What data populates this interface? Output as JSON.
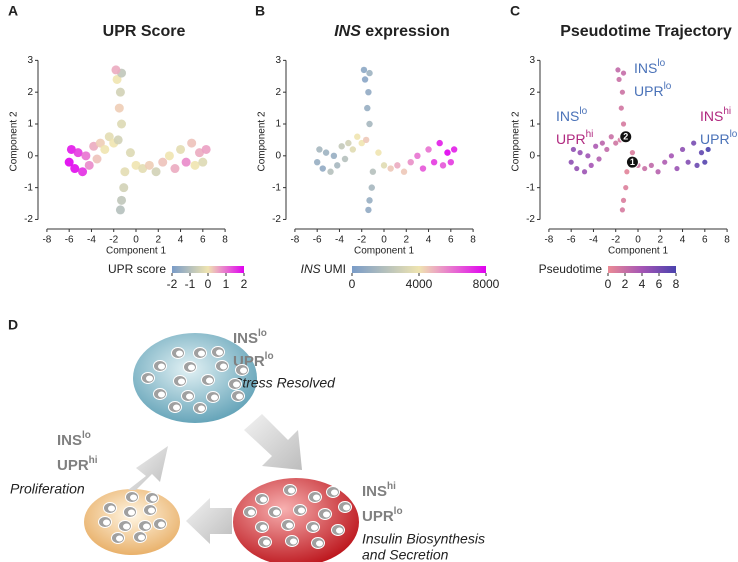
{
  "chart_data": [
    {
      "type": "scatter",
      "panel": "A",
      "title": [
        {
          "text": "UPR Score"
        }
      ],
      "xlabel": "Component 1",
      "ylabel": "Component 2",
      "xlim": [
        -8.8,
        8.8
      ],
      "ylim": [
        -2.3,
        3.2
      ],
      "xticks": [
        -8,
        -6,
        -4,
        -2,
        0,
        2,
        4,
        6,
        8
      ],
      "yticks": [
        -2,
        -1,
        0,
        1,
        2,
        3
      ],
      "x": [
        -6,
        -5.8,
        -5.5,
        -5.2,
        -4.8,
        -4.5,
        -4.2,
        -3.8,
        -3.5,
        -3.2,
        -2.8,
        -2.4,
        -2,
        -1.6,
        -1.3,
        -1.5,
        -1.4,
        -1.7,
        -1.3,
        -1.8,
        -1,
        -1.1,
        -1.3,
        -1.4,
        -0.5,
        0,
        0.6,
        1.2,
        1.8,
        2.4,
        3,
        3.5,
        4,
        4.5,
        5,
        5.3,
        5.7,
        6,
        6.3
      ],
      "y": [
        -0.2,
        0.2,
        -0.4,
        0.1,
        -0.5,
        0,
        -0.3,
        0.3,
        -0.1,
        0.4,
        0.2,
        0.6,
        0.4,
        0.5,
        1,
        1.5,
        2,
        2.4,
        2.6,
        2.7,
        -0.5,
        -1,
        -1.4,
        -1.7,
        0.1,
        -0.3,
        -0.4,
        -0.3,
        -0.5,
        -0.2,
        0,
        -0.4,
        0.2,
        -0.2,
        0.4,
        -0.3,
        0.1,
        -0.2,
        0.2
      ],
      "c": [
        2,
        1.8,
        1.9,
        1.5,
        1.6,
        1,
        0.8,
        0.5,
        0.3,
        0.2,
        0,
        -0.2,
        0,
        -0.5,
        -0.3,
        0.2,
        -0.5,
        0,
        -0.8,
        0.5,
        -0.2,
        -0.5,
        -0.8,
        -1,
        -0.3,
        0,
        -0.2,
        0.2,
        -0.5,
        0.3,
        0,
        0.5,
        -0.2,
        0.8,
        0.3,
        0,
        0.5,
        -0.3,
        0.6
      ],
      "colorbar": {
        "label": [
          {
            "text": "UPR score"
          }
        ],
        "lim": [
          -2,
          2
        ],
        "ticks": [
          -2,
          -1,
          0,
          1,
          2
        ],
        "colors": [
          "#7a9cc8",
          "#efe4b0",
          "#e000f0"
        ]
      }
    },
    {
      "type": "scatter",
      "panel": "B",
      "title": [
        {
          "text": "INS",
          "italic": true
        },
        {
          "text": " expression"
        }
      ],
      "xlabel": "Component 1",
      "ylabel": "Component 2",
      "xlim": [
        -8.8,
        8.8
      ],
      "ylim": [
        -2.3,
        3.2
      ],
      "xticks": [
        -8,
        -6,
        -4,
        -2,
        0,
        2,
        4,
        6,
        8
      ],
      "yticks": [
        -2,
        -1,
        0,
        1,
        2,
        3
      ],
      "x": [
        -6,
        -5.8,
        -5.5,
        -5.2,
        -4.8,
        -4.5,
        -4.2,
        -3.8,
        -3.5,
        -3.2,
        -2.8,
        -2.4,
        -2,
        -1.6,
        -1.3,
        -1.5,
        -1.4,
        -1.7,
        -1.3,
        -1.8,
        -1,
        -1.1,
        -1.3,
        -1.4,
        -0.5,
        0,
        0.6,
        1.2,
        1.8,
        2.4,
        3,
        3.5,
        4,
        4.5,
        5,
        5.3,
        5.7,
        6,
        6.3
      ],
      "y": [
        -0.2,
        0.2,
        -0.4,
        0.1,
        -0.5,
        0,
        -0.3,
        0.3,
        -0.1,
        0.4,
        0.2,
        0.6,
        0.4,
        0.5,
        1,
        1.5,
        2,
        2.4,
        2.6,
        2.7,
        -0.5,
        -1,
        -1.4,
        -1.7,
        0.1,
        -0.3,
        -0.4,
        -0.3,
        -0.5,
        -0.2,
        0,
        -0.4,
        0.2,
        -0.2,
        0.4,
        -0.3,
        0.1,
        -0.2,
        0.2
      ],
      "c": [
        1000,
        1500,
        800,
        1200,
        2000,
        1000,
        1500,
        2500,
        2000,
        3000,
        3500,
        4000,
        4000,
        4500,
        1500,
        1000,
        800,
        500,
        1200,
        600,
        2000,
        1500,
        1000,
        800,
        4000,
        3500,
        4500,
        5000,
        4500,
        5500,
        6000,
        6500,
        6000,
        7000,
        7500,
        6500,
        8000,
        7000,
        7500
      ],
      "colorbar": {
        "label": [
          {
            "text": "INS",
            "italic": true
          },
          {
            "text": " UMI"
          }
        ],
        "lim": [
          0,
          8000
        ],
        "ticks": [
          0,
          4000,
          8000
        ],
        "colors": [
          "#7a9cc8",
          "#efe4b0",
          "#e000f0"
        ]
      }
    },
    {
      "type": "scatter",
      "panel": "C",
      "title": [
        {
          "text": "Pseudotime Trajectory"
        }
      ],
      "xlabel": "Component 1",
      "ylabel": "Component 2",
      "xlim": [
        -8.8,
        8.8
      ],
      "ylim": [
        -2.3,
        3.2
      ],
      "xticks": [
        -8,
        -6,
        -4,
        -2,
        0,
        2,
        4,
        6,
        8
      ],
      "yticks": [
        -2,
        -1,
        0,
        1,
        2,
        3
      ],
      "x": [
        -6,
        -5.8,
        -5.5,
        -5.2,
        -4.8,
        -4.5,
        -4.2,
        -3.8,
        -3.5,
        -3.2,
        -2.8,
        -2.4,
        -2,
        -1.6,
        -1.3,
        -1.5,
        -1.4,
        -1.7,
        -1.3,
        -1.8,
        -1,
        -1.1,
        -1.3,
        -1.4,
        -0.5,
        0,
        0.6,
        1.2,
        1.8,
        2.4,
        3,
        3.5,
        4,
        4.5,
        5,
        5.3,
        5.7,
        6,
        6.3
      ],
      "y": [
        -0.2,
        0.2,
        -0.4,
        0.1,
        -0.5,
        0,
        -0.3,
        0.3,
        -0.1,
        0.4,
        0.2,
        0.6,
        0.4,
        0.5,
        1,
        1.5,
        2,
        2.4,
        2.6,
        2.7,
        -0.5,
        -1,
        -1.4,
        -1.7,
        0.1,
        -0.3,
        -0.4,
        -0.3,
        -0.5,
        -0.2,
        0,
        -0.4,
        0.2,
        -0.2,
        0.4,
        -0.3,
        0.1,
        -0.2,
        0.2
      ],
      "c": [
        5,
        5,
        4.8,
        4.6,
        4.4,
        4.2,
        4,
        3.6,
        3.2,
        2.8,
        2.4,
        2,
        1.6,
        1.3,
        1.2,
        1.5,
        1.8,
        2,
        2.2,
        2.4,
        0.5,
        0.8,
        1,
        1.2,
        1,
        1.5,
        2,
        2.5,
        3,
        3.5,
        4,
        4.5,
        5,
        5.5,
        6,
        6.5,
        7,
        7.5,
        8
      ],
      "colorbar": {
        "label": [
          {
            "text": "Pseudotime"
          }
        ],
        "lim": [
          0,
          8
        ],
        "ticks": [
          0,
          2,
          4,
          6,
          8
        ],
        "colors": [
          "#ea8a95",
          "#a555b5",
          "#4a42ad"
        ]
      },
      "branch_points": [
        {
          "label": "1",
          "x": -0.5,
          "y": -0.2
        },
        {
          "label": "2",
          "x": -1.1,
          "y": 0.6
        }
      ],
      "annotations": [
        {
          "lines": [
            {
              "base": "INS",
              "sup": "lo",
              "color": "#4a72b8"
            },
            {
              "base": "UPR",
              "sup": "lo",
              "color": "#4a72b8"
            }
          ]
        },
        {
          "lines": [
            {
              "base": "INS",
              "sup": "lo",
              "color": "#4a72b8"
            },
            {
              "base": "UPR",
              "sup": "hi",
              "color": "#b0287f"
            }
          ]
        },
        {
          "lines": [
            {
              "base": "INS",
              "sup": "hi",
              "color": "#b0287f"
            },
            {
              "base": "UPR",
              "sup": "lo",
              "color": "#4a72b8"
            }
          ]
        }
      ]
    }
  ],
  "diagram": {
    "panel": "D",
    "nodes": [
      {
        "lines": [
          {
            "base": "INS",
            "sup": "lo"
          },
          {
            "base": "UPR",
            "sup": "lo"
          },
          {
            "text": "Stress Resolved"
          }
        ]
      },
      {
        "lines": [
          {
            "base": "INS",
            "sup": "lo"
          },
          {
            "base": "UPR",
            "sup": "hi"
          },
          {
            "text": "Proliferation"
          }
        ]
      },
      {
        "lines": [
          {
            "base": "INS",
            "sup": "hi"
          },
          {
            "base": "UPR",
            "sup": "lo"
          },
          {
            "text": "Insulin Biosynthesis"
          },
          {
            "text": "and Secretion"
          }
        ]
      }
    ]
  }
}
